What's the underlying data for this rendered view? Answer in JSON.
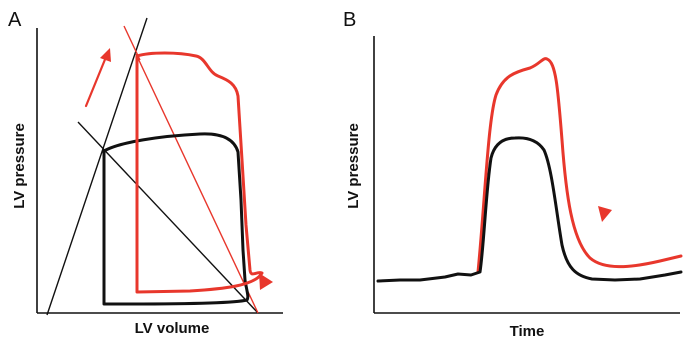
{
  "panels": {
    "a": {
      "letter": "A",
      "x_axis_label": "LV volume",
      "y_axis_label": "LV pressure"
    },
    "b": {
      "letter": "B",
      "x_axis_label": "Time",
      "y_axis_label": "LV pressure"
    }
  },
  "colors": {
    "baseline": "#111111",
    "intervention": "#e8372c"
  },
  "icons": {
    "arrow": "red-arrow-icon",
    "arrowhead": "red-triangle-arrowhead-icon"
  }
}
